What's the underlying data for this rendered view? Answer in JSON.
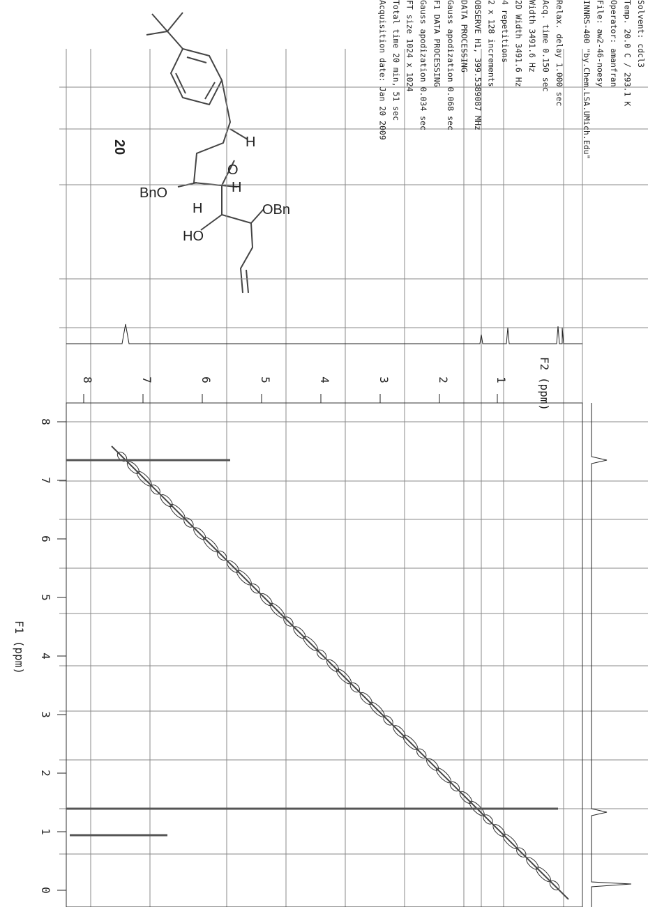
{
  "parameters": [
    "Solvent: cdcl3",
    "Temp. 20.0 C / 293.1 K",
    "Operator: amanfran",
    "File: aw2-46-noesy",
    "INNRS-400 \"by.Chem.LSA.UMich.Edu\"",
    "Relax. delay 1.000 sec",
    "Acq. time 0.150 sec",
    "Width 3491.6 Hz",
    "2D Width 3491.6 Hz",
    "4 repetitions",
    "2 x 128 increments",
    "OBSERVE H1, 399.5389087 MHz",
    "DATA PROCESSING",
    "Gauss apodization 0.068 sec",
    "F1 DATA PROCESSING",
    "Gauss apodization 0.034 sec",
    "FT size 1024 x 1024",
    "Total time 20 min, 51 sec",
    "Acquisition date: Jan 20 2009"
  ],
  "structure": {
    "compound": "20",
    "labels": [
      "BnO",
      "O",
      "H",
      "H",
      "H",
      "OBn",
      "HO"
    ]
  },
  "f2_axis": {
    "label": "F2 (ppm)",
    "ticks": [
      "8",
      "7",
      "6",
      "5",
      "4",
      "3",
      "2",
      "1"
    ]
  },
  "f1_axis": {
    "label": "F1 (ppm)",
    "ticks": [
      "8",
      "7",
      "6",
      "5",
      "4",
      "3",
      "2",
      "1",
      "0"
    ]
  }
}
